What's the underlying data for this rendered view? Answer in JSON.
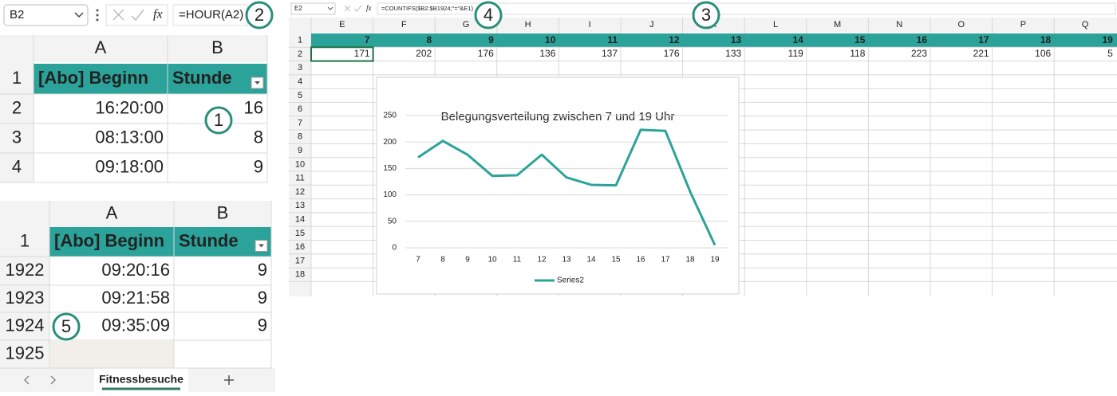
{
  "excel_top": {
    "name_box": "B2",
    "fx": "fx",
    "formula": "=HOUR(A2)",
    "columns": [
      "A",
      "B"
    ],
    "rows": [
      {
        "row": 1,
        "cells": [
          "[Abo] Beginn",
          "Stunde"
        ]
      },
      {
        "row": 2,
        "cells": [
          "16:20:00",
          16
        ]
      },
      {
        "row": 3,
        "cells": [
          "08:13:00",
          8
        ]
      },
      {
        "row": 4,
        "cells": [
          "09:18:00",
          9
        ]
      }
    ]
  },
  "excel_bottom": {
    "columns": [
      "A",
      "B"
    ],
    "rows": [
      {
        "row": 1,
        "cells": [
          "[Abo] Beginn",
          "Stunde"
        ]
      },
      {
        "row": 1922,
        "cells": [
          "09:20:16",
          9
        ]
      },
      {
        "row": 1923,
        "cells": [
          "09:21:58",
          9
        ]
      },
      {
        "row": 1924,
        "cells": [
          "09:35:09",
          9
        ]
      },
      {
        "row": 1925,
        "cells": []
      }
    ],
    "sheet_tab": "Fitnessbesuche"
  },
  "excel_right": {
    "name_box": "E2",
    "fx": "fx",
    "formula": "=COUNTIFS($B2:$B1924;\"=\"&E1)",
    "columns": [
      "E",
      "F",
      "G",
      "H",
      "I",
      "J",
      "K",
      "L",
      "M",
      "N",
      "O",
      "P",
      "Q"
    ],
    "row_numbers": [
      1,
      2,
      3,
      4,
      5,
      6,
      7,
      8,
      9,
      10,
      11,
      12,
      13,
      14,
      15,
      16,
      17,
      18
    ],
    "row1": [
      7,
      8,
      9,
      10,
      11,
      12,
      13,
      14,
      15,
      16,
      17,
      18,
      19
    ],
    "row2": [
      171,
      202,
      176,
      136,
      137,
      176,
      133,
      119,
      118,
      223,
      221,
      106,
      5
    ]
  },
  "callouts": [
    "1",
    "2",
    "3",
    "4",
    "5"
  ],
  "chart_data": {
    "type": "line",
    "title": "Belegungsverteilung zwischen 7 und 19 Uhr",
    "categories": [
      7,
      8,
      9,
      10,
      11,
      12,
      13,
      14,
      15,
      16,
      17,
      18,
      19
    ],
    "series": [
      {
        "name": "Series2",
        "color": "#2ba39a",
        "values": [
          171,
          202,
          176,
          136,
          137,
          176,
          133,
          119,
          118,
          223,
          221,
          106,
          5
        ]
      }
    ],
    "ylim": [
      0,
      250
    ],
    "yticks": [
      0,
      50,
      100,
      150,
      200,
      250
    ],
    "grid": true,
    "legend": "bottom"
  }
}
